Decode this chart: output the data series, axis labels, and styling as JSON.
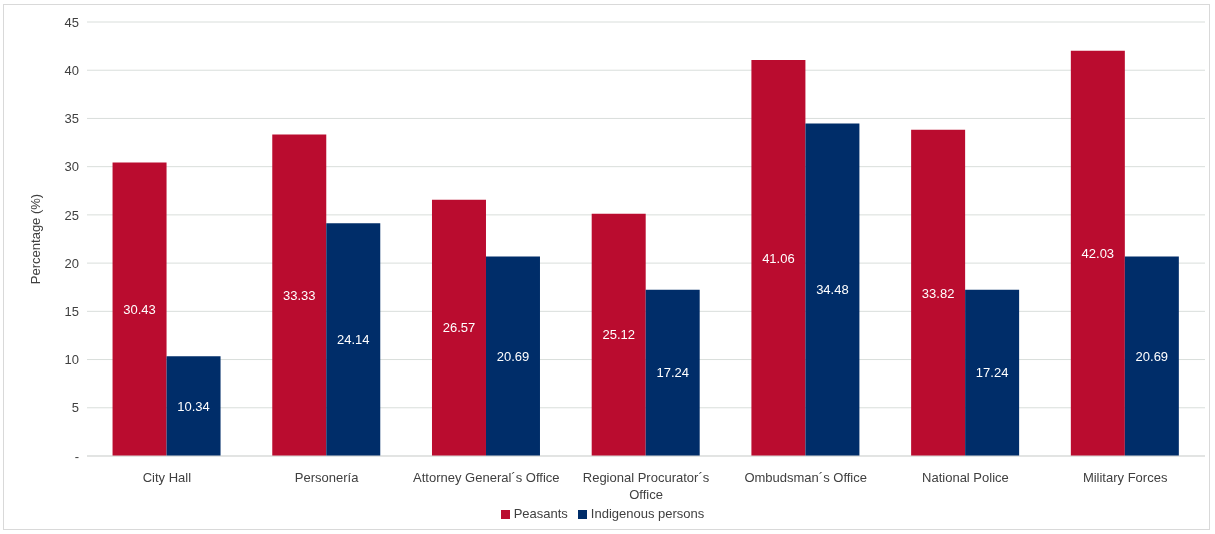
{
  "chart_data": {
    "type": "bar",
    "ylabel": "Percentage (%)",
    "categories": [
      "City Hall",
      "Personería",
      "Attorney General´s Office",
      "Regional Procurator´s Office",
      "Ombudsman´s Office",
      "National Police",
      "Military Forces"
    ],
    "series": [
      {
        "name": "Peasants",
        "color": "#ba0c2f",
        "values": [
          30.43,
          33.33,
          26.57,
          25.12,
          41.06,
          33.82,
          42.03
        ]
      },
      {
        "name": "Indigenous persons",
        "color": "#002d69",
        "values": [
          10.34,
          24.14,
          20.69,
          17.24,
          34.48,
          17.24,
          20.69
        ]
      }
    ],
    "ylim": [
      0,
      45
    ],
    "yticks": [
      {
        "value": 0,
        "label": "-"
      },
      5,
      10,
      15,
      20,
      25,
      30,
      35,
      40,
      45
    ],
    "grid": "y",
    "legend": "bottom",
    "data_labels": true
  }
}
